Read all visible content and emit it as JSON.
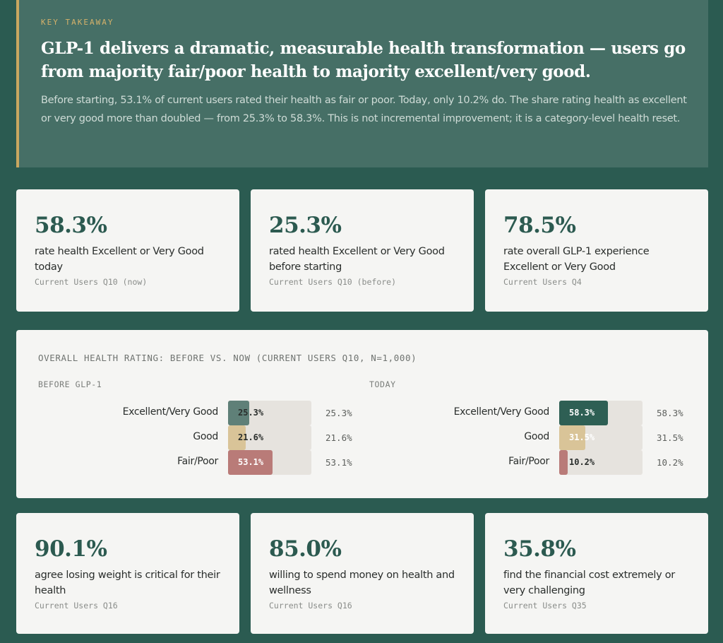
{
  "takeaway": {
    "label": "KEY TAKEAWAY",
    "title": "GLP-1 delivers a dramatic, measurable health transformation — users go from majority fair/poor health to majority excellent/very good.",
    "body": "Before starting, 53.1% of current users rated their health as fair or poor. Today, only 10.2% do. The share rating health as excellent or very good more than doubled — from 25.3% to 58.3%. This is not incremental improvement; it is a category-level health reset."
  },
  "stats_top": [
    {
      "value": "58.3%",
      "desc": "rate health Excellent or Very Good today",
      "source": "Current Users Q10 (now)"
    },
    {
      "value": "25.3%",
      "desc": "rated health Excellent or Very Good before starting",
      "source": "Current Users Q10 (before)"
    },
    {
      "value": "78.5%",
      "desc": "rate overall GLP-1 experience Excellent or Very Good",
      "source": "Current Users Q4"
    }
  ],
  "chart_data": {
    "type": "bar",
    "title": "OVERALL HEALTH RATING: BEFORE VS. NOW (CURRENT USERS Q10, N=1,000)",
    "categories": [
      "Excellent/Very Good",
      "Good",
      "Fair/Poor"
    ],
    "groups": [
      {
        "name": "BEFORE GLP-1",
        "values": [
          25.3,
          21.6,
          53.1
        ],
        "labels": [
          "25.3%",
          "21.6%",
          "53.1%"
        ]
      },
      {
        "name": "TODAY",
        "values": [
          58.3,
          31.5,
          10.2
        ],
        "labels": [
          "58.3%",
          "31.5%",
          "10.2%"
        ]
      }
    ],
    "colors": {
      "before": [
        "#5f8078",
        "#d9c498",
        "#b97b78"
      ],
      "today": [
        "#2e5f54",
        "#d9c498",
        "#b97b78"
      ],
      "track": "#e6e3de"
    },
    "xlim": [
      0,
      100
    ]
  },
  "stats_bottom": [
    {
      "value": "90.1%",
      "desc": "agree losing weight is critical for their health",
      "source": "Current Users Q16"
    },
    {
      "value": "85.0%",
      "desc": "willing to spend money on health and wellness",
      "source": "Current Users Q16"
    },
    {
      "value": "35.8%",
      "desc": "find the financial cost extremely or very challenging",
      "source": "Current Users Q35"
    }
  ]
}
